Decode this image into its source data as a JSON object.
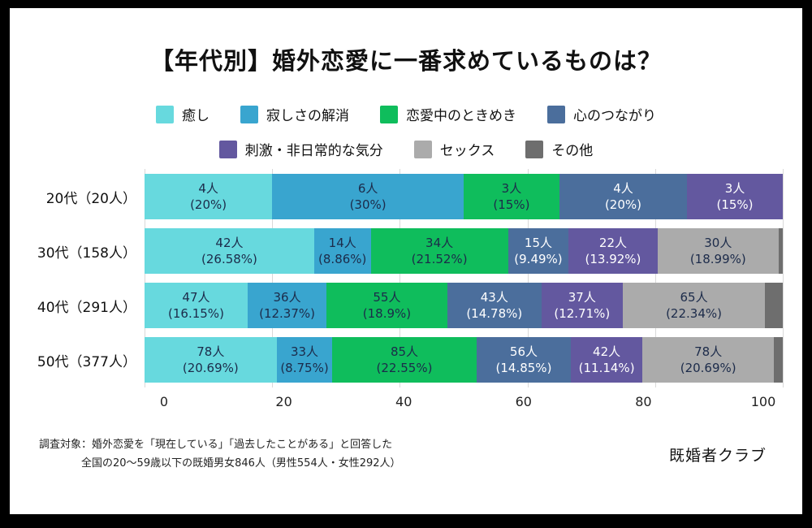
{
  "title": "【年代別】婚外恋愛に一番求めているものは？",
  "chart_data": {
    "type": "bar",
    "orientation": "horizontal",
    "stacked": true,
    "unit": "人",
    "label_min_percent": 4,
    "grid": true,
    "xlim": [
      0,
      100
    ],
    "xticks": [
      "0",
      "20",
      "40",
      "60",
      "80",
      "100"
    ],
    "categories": [
      "20代（20人）",
      "30代（158人）",
      "40代（291人）",
      "50代（377人）"
    ],
    "category_totals": [
      20,
      158,
      291,
      377
    ],
    "series": [
      {
        "name": "癒し",
        "color": "#67d9de",
        "label_color": "#1c2b4a",
        "counts": [
          4,
          42,
          47,
          78
        ],
        "percents": [
          20,
          26.58,
          16.15,
          20.69
        ]
      },
      {
        "name": "寂しさの解消",
        "color": "#39a5cf",
        "label_color": "#1c2b4a",
        "counts": [
          6,
          14,
          36,
          33
        ],
        "percents": [
          30,
          8.86,
          12.37,
          8.75
        ]
      },
      {
        "name": "恋愛中のときめき",
        "color": "#0fbd5c",
        "label_color": "#1c2b4a",
        "counts": [
          3,
          34,
          55,
          85
        ],
        "percents": [
          15,
          21.52,
          18.9,
          22.55
        ]
      },
      {
        "name": "心のつながり",
        "color": "#4b6e9c",
        "label_color": "#ffffff",
        "counts": [
          4,
          15,
          43,
          56
        ],
        "percents": [
          20,
          9.49,
          14.78,
          14.85
        ]
      },
      {
        "name": "刺激・非日常的な気分",
        "color": "#63589f",
        "label_color": "#ffffff",
        "counts": [
          3,
          22,
          37,
          42
        ],
        "percents": [
          15,
          13.92,
          12.71,
          11.14
        ]
      },
      {
        "name": "セックス",
        "color": "#ababab",
        "label_color": "#1c2b4a",
        "counts": [
          0,
          30,
          65,
          78
        ],
        "percents": [
          0,
          18.99,
          22.34,
          20.69
        ]
      },
      {
        "name": "その他",
        "color": "#6e6e6e",
        "label_color": "#ffffff",
        "counts": [
          0,
          1,
          8,
          5
        ],
        "percents": [
          0,
          0.63,
          2.75,
          1.33
        ]
      }
    ],
    "legend_rows": [
      4,
      3
    ]
  },
  "footnote": {
    "line1": "調査対象：婚外恋愛を「現在している」「過去したことがある」と回答した",
    "line2": "全国の20〜59歳以下の既婚男女846人（男性554人・女性292人）"
  },
  "brand": "既婚者クラブ"
}
